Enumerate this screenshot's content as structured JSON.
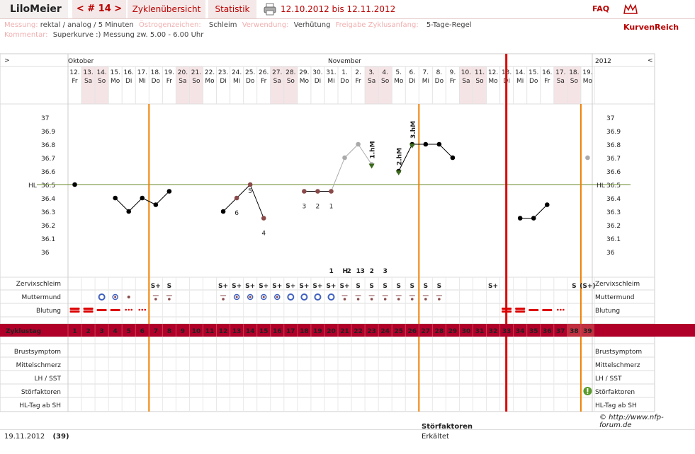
{
  "app": {
    "user": "LiloMeier",
    "cycle_nav": "< # 14 >",
    "tabs": [
      "Zyklenübersicht",
      "Statistik"
    ],
    "period": "12.10.2012 bis 12.11.2012",
    "faq": "FAQ",
    "logo": "KurvenReich"
  },
  "info": {
    "messung_label": "Messung:",
    "messung_value": "rektal / analog / 5 Minuten",
    "oestrogen_label": "Östrogenzeichen:",
    "oestrogen_value": "Schleim",
    "verwendung_label": "Verwendung:",
    "verwendung_value": "Verhütung",
    "freigabe_label": "Freigabe Zyklusanfang:",
    "freigabe_value": "5-Tage-Regel",
    "kommentar_label": "Kommentar:",
    "kommentar_value": "Superkurve :)  Messung zw. 5.00 - 6.00 Uhr"
  },
  "header": {
    "nav_left": ">",
    "nav_right": "<",
    "year": "2012",
    "months": [
      {
        "name": "Oktober",
        "col": 0
      },
      {
        "name": "November",
        "col": 20
      }
    ]
  },
  "days": [
    {
      "d": "12.",
      "w": "Fr",
      "cd": "1",
      "we": false
    },
    {
      "d": "13.",
      "w": "Sa",
      "cd": "2",
      "we": true
    },
    {
      "d": "14.",
      "w": "So",
      "cd": "3",
      "we": true
    },
    {
      "d": "15.",
      "w": "Mo",
      "cd": "4",
      "we": false
    },
    {
      "d": "16.",
      "w": "Di",
      "cd": "5",
      "we": false
    },
    {
      "d": "17.",
      "w": "Mi",
      "cd": "6",
      "we": false
    },
    {
      "d": "18.",
      "w": "Do",
      "cd": "7",
      "we": false
    },
    {
      "d": "19.",
      "w": "Fr",
      "cd": "8",
      "we": false
    },
    {
      "d": "20.",
      "w": "Sa",
      "cd": "9",
      "we": true
    },
    {
      "d": "21.",
      "w": "So",
      "cd": "10",
      "we": true
    },
    {
      "d": "22.",
      "w": "Mo",
      "cd": "11",
      "we": false
    },
    {
      "d": "23.",
      "w": "Di",
      "cd": "12",
      "we": false
    },
    {
      "d": "24.",
      "w": "Mi",
      "cd": "13",
      "we": false
    },
    {
      "d": "25.",
      "w": "Do",
      "cd": "14",
      "we": false
    },
    {
      "d": "26.",
      "w": "Fr",
      "cd": "15",
      "we": false
    },
    {
      "d": "27.",
      "w": "Sa",
      "cd": "16",
      "we": true
    },
    {
      "d": "28.",
      "w": "So",
      "cd": "17",
      "we": true
    },
    {
      "d": "29.",
      "w": "Mo",
      "cd": "18",
      "we": false
    },
    {
      "d": "30.",
      "w": "Di",
      "cd": "19",
      "we": false
    },
    {
      "d": "31.",
      "w": "Mi",
      "cd": "20",
      "we": false
    },
    {
      "d": "1.",
      "w": "Do",
      "cd": "21",
      "we": false
    },
    {
      "d": "2.",
      "w": "Fr",
      "cd": "22",
      "we": false
    },
    {
      "d": "3.",
      "w": "Sa",
      "cd": "23",
      "we": true
    },
    {
      "d": "4.",
      "w": "So",
      "cd": "24",
      "we": true
    },
    {
      "d": "5.",
      "w": "Mo",
      "cd": "25",
      "we": false
    },
    {
      "d": "6.",
      "w": "Di",
      "cd": "26",
      "we": false
    },
    {
      "d": "7.",
      "w": "Mi",
      "cd": "27",
      "we": false
    },
    {
      "d": "8.",
      "w": "Do",
      "cd": "28",
      "we": false
    },
    {
      "d": "9.",
      "w": "Fr",
      "cd": "29",
      "we": false
    },
    {
      "d": "10.",
      "w": "Sa",
      "cd": "30",
      "we": true
    },
    {
      "d": "11.",
      "w": "So",
      "cd": "31",
      "we": true
    },
    {
      "d": "12.",
      "w": "Mo",
      "cd": "32",
      "we": false
    },
    {
      "d": "13.",
      "w": "Di",
      "cd": "33",
      "we": false
    },
    {
      "d": "14.",
      "w": "Mi",
      "cd": "34",
      "we": false
    },
    {
      "d": "15.",
      "w": "Do",
      "cd": "35",
      "we": false
    },
    {
      "d": "16.",
      "w": "Fr",
      "cd": "36",
      "we": false
    },
    {
      "d": "17.",
      "w": "Sa",
      "cd": "37",
      "we": true
    },
    {
      "d": "18.",
      "w": "So",
      "cd": "38",
      "we": true
    },
    {
      "d": "19.",
      "w": "Mo",
      "cd": "39",
      "we": false
    }
  ],
  "chart_data": {
    "type": "line",
    "y_ticks": [
      "37",
      "36.9",
      "36.8",
      "36.7",
      "36.6",
      "36.5",
      "36.4",
      "36.3",
      "36.2",
      "36.1",
      "36"
    ],
    "ylim": [
      36.0,
      37.0
    ],
    "hl_label": "HL",
    "hl_value": 36.5,
    "temps": [
      36.5,
      null,
      null,
      36.4,
      36.3,
      36.4,
      36.35,
      36.45,
      null,
      null,
      null,
      36.3,
      36.4,
      36.5,
      36.25,
      null,
      null,
      36.45,
      36.45,
      36.45,
      36.7,
      36.8,
      36.65,
      null,
      36.6,
      36.8,
      36.8,
      36.8,
      36.7,
      null,
      null,
      null,
      null,
      36.25,
      36.25,
      36.35,
      null,
      null,
      36.7
    ],
    "excluded": [
      20,
      21,
      22,
      38
    ],
    "count_labels": [
      {
        "day": 12,
        "text": "6"
      },
      {
        "day": 13,
        "text": "5"
      },
      {
        "day": 14,
        "text": "4"
      },
      {
        "day": 17,
        "text": "3"
      },
      {
        "day": 18,
        "text": "2"
      },
      {
        "day": 19,
        "text": "1"
      }
    ],
    "hm_labels": [
      {
        "day": 22,
        "text": "1.hM"
      },
      {
        "day": 24,
        "text": "2.hM"
      },
      {
        "day": 25,
        "text": "3.hM"
      }
    ],
    "lh_markers": [
      {
        "day": 19,
        "text": "1",
        "color": "#4060c0"
      },
      {
        "day": 20,
        "text": "H",
        "color": "#e07000"
      },
      {
        "day": 20,
        "text": "2",
        "color": "#4060c0"
      },
      {
        "day": 21,
        "text": "1",
        "color": "#e07000"
      },
      {
        "day": 21,
        "text": "3",
        "color": "#4060c0"
      },
      {
        "day": 22,
        "text": "2",
        "color": "#e07000"
      },
      {
        "day": 23,
        "text": "3",
        "color": "#e07000"
      }
    ],
    "orange_lines": [
      5,
      25,
      37
    ],
    "red_line": 32
  },
  "rows": {
    "cervix": "Zervixschleim",
    "mm": "Muttermund",
    "blood": "Blutung",
    "cycle": "Zyklustag",
    "brust": "Brustsymptom",
    "mittel": "Mittelschmerz",
    "lh": "LH / SST",
    "stoer": "Störfaktoren",
    "hltag": "HL-Tag ab SH"
  },
  "cervix_marks": [
    null,
    null,
    null,
    null,
    null,
    null,
    "S+",
    "S",
    null,
    null,
    null,
    "S+",
    "S+",
    "S+",
    "S+",
    "S+",
    "S+",
    "S+",
    "S+",
    "S+",
    "S+",
    "S",
    "S",
    "S",
    "S",
    "S",
    "S",
    "S",
    null,
    null,
    null,
    "S+",
    null,
    null,
    null,
    null,
    null,
    "S",
    "(S+)"
  ],
  "mm_marks": [
    null,
    null,
    "ring",
    "dotring",
    "dot",
    null,
    "dash",
    "dash",
    null,
    null,
    null,
    "dash",
    "dotring",
    "dotring",
    "dotring",
    "dotring",
    "ring",
    "ring",
    "ring",
    "ring",
    "dash",
    "dash",
    "dash",
    "dash",
    "dash",
    "dash",
    "dash",
    "dash",
    null,
    null,
    null,
    null,
    null,
    null,
    null,
    null,
    null,
    null,
    null
  ],
  "blood_marks": [
    "heavy",
    "heavy",
    "medium",
    "medium",
    "light",
    "light",
    null,
    null,
    null,
    null,
    null,
    null,
    null,
    null,
    null,
    null,
    null,
    null,
    null,
    null,
    null,
    null,
    null,
    null,
    null,
    null,
    null,
    null,
    null,
    null,
    null,
    null,
    "heavy",
    "heavy",
    "medium",
    "medium",
    "light",
    null,
    null
  ],
  "stoer_marker_day": 38,
  "footer": {
    "date": "19.11.2012",
    "count": "(39)",
    "sf_title": "Störfaktoren",
    "sf_value": "Erkältet",
    "copyright": "© http://www.nfp-forum.de"
  },
  "colors": {
    "red": "#b0002a",
    "orange": "#f08000",
    "blue": "#4060c0",
    "brown": "#8a4a4a",
    "green": "#5a8a2a",
    "weekend": "#f5e4e6"
  }
}
